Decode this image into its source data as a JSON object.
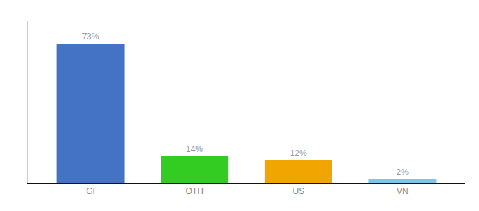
{
  "chart_data": {
    "type": "bar",
    "categories": [
      "GI",
      "OTH",
      "US",
      "VN"
    ],
    "values": [
      73,
      14,
      12,
      2
    ],
    "value_labels": [
      "73%",
      "14%",
      "12%",
      "2%"
    ],
    "colors": [
      "#4472c4",
      "#33cc22",
      "#f0a500",
      "#7ec8e3"
    ],
    "ylim": [
      0,
      85
    ],
    "grid": false,
    "data_labels": true,
    "tick_labels": "x"
  }
}
